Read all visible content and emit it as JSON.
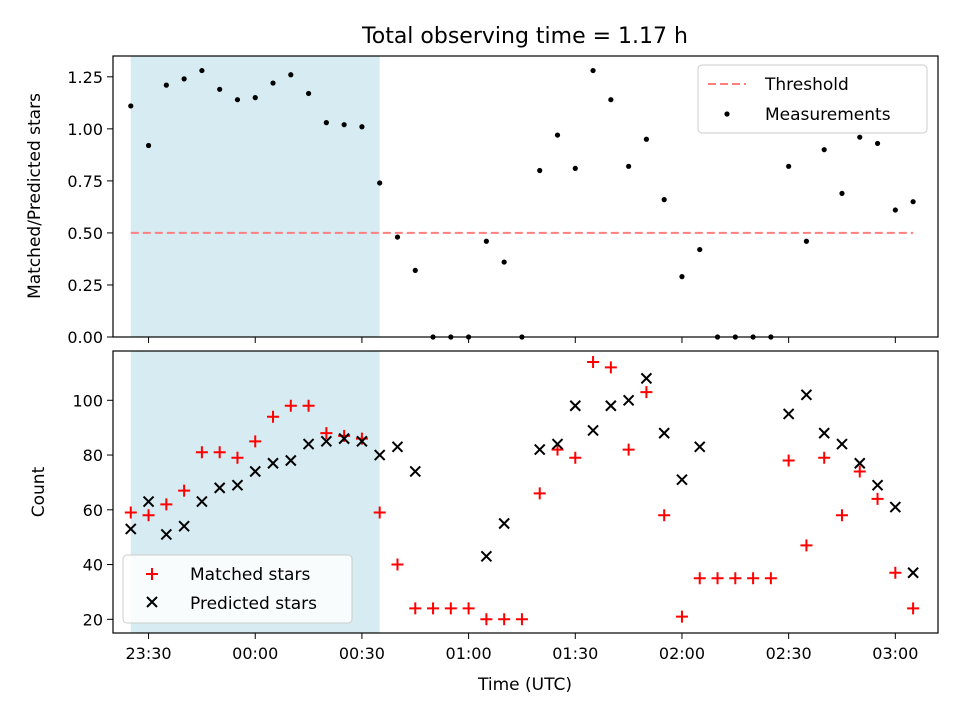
{
  "chart_data": [
    {
      "type": "scatter",
      "title": "Total observing time = 1.17 h",
      "xlabel": "",
      "ylabel": "Matched/Predicted stars",
      "xlim": [
        "23:20",
        "03:12"
      ],
      "ylim": [
        0,
        1.35
      ],
      "yticks": [
        "0.00",
        "0.25",
        "0.50",
        "0.75",
        "1.00",
        "1.25"
      ],
      "shaded_span": [
        "23:25",
        "00:35"
      ],
      "series": [
        {
          "name": "Threshold",
          "kind": "dashed-line",
          "color": "#ff7f7f",
          "x": [
            "23:25",
            "03:05"
          ],
          "y": [
            0.5,
            0.5
          ]
        },
        {
          "name": "Measurements",
          "kind": "dot",
          "color": "#000000",
          "x": [
            "23:25",
            "23:30",
            "23:35",
            "23:40",
            "23:45",
            "23:50",
            "23:55",
            "00:00",
            "00:05",
            "00:10",
            "00:15",
            "00:20",
            "00:25",
            "00:30",
            "00:35",
            "00:40",
            "00:45",
            "00:50",
            "00:55",
            "01:00",
            "01:05",
            "01:10",
            "01:15",
            "01:20",
            "01:25",
            "01:30",
            "01:35",
            "01:40",
            "01:45",
            "01:50",
            "01:55",
            "02:00",
            "02:05",
            "02:10",
            "02:15",
            "02:20",
            "02:25",
            "02:30",
            "02:35",
            "02:40",
            "02:45",
            "02:50",
            "02:55",
            "03:00",
            "03:05"
          ],
          "y": [
            1.11,
            0.92,
            1.21,
            1.24,
            1.28,
            1.19,
            1.14,
            1.15,
            1.22,
            1.26,
            1.17,
            1.03,
            1.02,
            1.01,
            0.74,
            0.48,
            0.32,
            0.0,
            0.0,
            0.0,
            0.46,
            0.36,
            0.0,
            0.8,
            0.97,
            0.81,
            1.28,
            1.14,
            0.82,
            0.95,
            0.66,
            0.29,
            0.42,
            0.0,
            0.0,
            0.0,
            0.0,
            0.82,
            0.46,
            0.9,
            0.69,
            0.96,
            0.93,
            0.61,
            0.65
          ]
        }
      ],
      "legend_position": "upper right"
    },
    {
      "type": "scatter",
      "title": "",
      "xlabel": "Time (UTC)",
      "ylabel": "Count",
      "xlim": [
        "23:20",
        "03:12"
      ],
      "ylim": [
        15,
        118
      ],
      "xticks": [
        "23:30",
        "00:00",
        "00:30",
        "01:00",
        "01:30",
        "02:00",
        "02:30",
        "03:00"
      ],
      "yticks": [
        "20",
        "40",
        "60",
        "80",
        "100"
      ],
      "shaded_span": [
        "23:25",
        "00:35"
      ],
      "series": [
        {
          "name": "Matched stars",
          "marker": "plus",
          "color": "#ff0000",
          "x": [
            "23:25",
            "23:30",
            "23:35",
            "23:40",
            "23:45",
            "23:50",
            "23:55",
            "00:00",
            "00:05",
            "00:10",
            "00:15",
            "00:20",
            "00:25",
            "00:30",
            "00:35",
            "00:40",
            "00:45",
            "00:50",
            "00:55",
            "01:00",
            "01:05",
            "01:10",
            "01:15",
            "01:20",
            "01:25",
            "01:30",
            "01:35",
            "01:40",
            "01:45",
            "01:50",
            "01:55",
            "02:00",
            "02:05",
            "02:10",
            "02:15",
            "02:20",
            "02:25",
            "02:30",
            "02:35",
            "02:40",
            "02:45",
            "02:50",
            "02:55",
            "03:00",
            "03:05"
          ],
          "y": [
            59,
            58,
            62,
            67,
            81,
            81,
            79,
            85,
            94,
            98,
            98,
            88,
            87,
            86,
            59,
            40,
            24,
            24,
            24,
            24,
            20,
            20,
            20,
            66,
            82,
            79,
            114,
            112,
            82,
            103,
            58,
            21,
            35,
            35,
            35,
            35,
            35,
            78,
            47,
            79,
            58,
            74,
            64,
            37,
            24
          ]
        },
        {
          "name": "Predicted stars",
          "marker": "x",
          "color": "#000000",
          "x": [
            "23:25",
            "23:30",
            "23:35",
            "23:40",
            "23:45",
            "23:50",
            "23:55",
            "00:00",
            "00:05",
            "00:10",
            "00:15",
            "00:20",
            "00:25",
            "00:30",
            "00:35",
            "00:40",
            "00:45",
            "01:05",
            "01:10",
            "01:20",
            "01:25",
            "01:30",
            "01:35",
            "01:40",
            "01:45",
            "01:50",
            "01:55",
            "02:00",
            "02:05",
            "02:30",
            "02:35",
            "02:40",
            "02:45",
            "02:50",
            "02:55",
            "03:00",
            "03:05"
          ],
          "y": [
            53,
            63,
            51,
            54,
            63,
            68,
            69,
            74,
            77,
            78,
            84,
            85,
            86,
            85,
            80,
            83,
            74,
            43,
            55,
            82,
            84,
            98,
            89,
            98,
            100,
            108,
            88,
            71,
            83,
            95,
            102,
            88,
            84,
            77,
            69,
            61,
            37
          ]
        }
      ],
      "legend_position": "lower left"
    }
  ]
}
